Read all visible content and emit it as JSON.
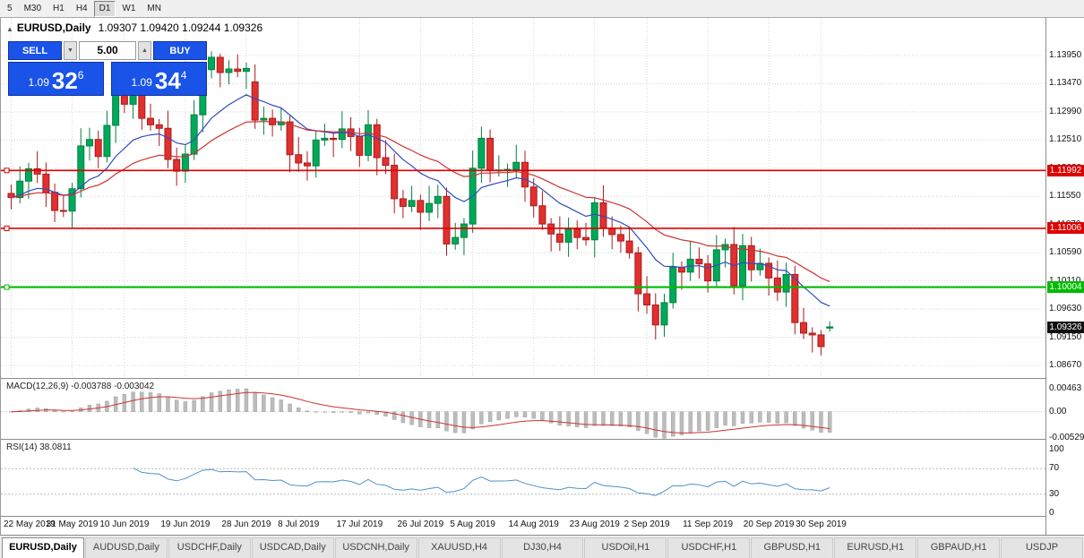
{
  "toolbar": {
    "timeframes": [
      "5",
      "M30",
      "H1",
      "H4",
      "D1",
      "W1",
      "MN"
    ],
    "active_timeframe": "D1"
  },
  "chart": {
    "collapse_icon": "▲",
    "symbol": "EURUSD,Daily",
    "ohlc": "1.09307 1.09420 1.09244 1.09326"
  },
  "trade_panel": {
    "sell_label": "SELL",
    "buy_label": "BUY",
    "volume": "5.00",
    "volume_down_icon": "▼",
    "volume_up_icon": "▲",
    "sell_price": {
      "head": "1.09",
      "main": "32",
      "sup": "6"
    },
    "buy_price": {
      "head": "1.09",
      "main": "34",
      "sup": "4"
    }
  },
  "chart_data": {
    "type": "candlestick",
    "symbol": "EURUSD",
    "timeframe": "Daily",
    "open": [
      1.116,
      1.1153,
      1.1181,
      1.1202,
      1.1193,
      1.1162,
      1.1131,
      1.113,
      1.1168,
      1.1241,
      1.1252,
      1.1223,
      1.1276,
      1.1334,
      1.1312,
      1.1328,
      1.1288,
      1.1277,
      1.1271,
      1.1218,
      1.1198,
      1.1227,
      1.1294,
      1.1371,
      1.1392,
      1.1366,
      1.1372,
      1.1368,
      1.135,
      1.1285,
      1.1288,
      1.1277,
      1.1282,
      1.1226,
      1.1212,
      1.1207,
      1.1251,
      1.1254,
      1.1252,
      1.127,
      1.1257,
      1.1225,
      1.1277,
      1.1221,
      1.1208,
      1.1151,
      1.1138,
      1.1148,
      1.1128,
      1.1143,
      1.1155,
      1.1074,
      1.1085,
      1.1108,
      1.1203,
      1.1254,
      1.1199,
      1.12,
      1.1201,
      1.1213,
      1.1171,
      1.1139,
      1.1108,
      1.1091,
      1.1077,
      1.1099,
      1.1085,
      1.1081,
      1.1144,
      1.1101,
      1.109,
      1.1079,
      1.1059,
      1.0989,
      1.097,
      1.0936,
      1.0974,
      1.1034,
      1.1026,
      1.1048,
      1.104,
      1.1011,
      1.1064,
      1.1073,
      1.1003,
      1.1071,
      1.103,
      1.1041,
      1.1016,
      1.0992,
      1.1022,
      1.094,
      1.0922,
      1.0919,
      1.09307
    ],
    "high": [
      1.1175,
      1.1206,
      1.1212,
      1.1232,
      1.1213,
      1.1177,
      1.1156,
      1.1178,
      1.1271,
      1.1272,
      1.1267,
      1.1301,
      1.1344,
      1.1364,
      1.1348,
      1.1343,
      1.1313,
      1.1287,
      1.1301,
      1.1238,
      1.1242,
      1.1319,
      1.1381,
      1.1402,
      1.1398,
      1.1387,
      1.1397,
      1.1383,
      1.138,
      1.1308,
      1.1303,
      1.1307,
      1.1292,
      1.1256,
      1.1232,
      1.1266,
      1.1279,
      1.1264,
      1.13,
      1.129,
      1.1272,
      1.1302,
      1.1287,
      1.1251,
      1.1228,
      1.1166,
      1.1173,
      1.1158,
      1.1173,
      1.1175,
      1.117,
      1.111,
      1.1118,
      1.1233,
      1.1274,
      1.1269,
      1.1225,
      1.1211,
      1.1243,
      1.1233,
      1.1186,
      1.1164,
      1.1118,
      1.1121,
      1.1119,
      1.1114,
      1.111,
      1.1154,
      1.1174,
      1.1121,
      1.1105,
      1.1104,
      1.1069,
      1.1019,
      1.099,
      1.0989,
      1.1059,
      1.1044,
      1.1078,
      1.1068,
      1.1055,
      1.1089,
      1.1083,
      1.1103,
      1.1091,
      1.1086,
      1.1066,
      1.1051,
      1.1046,
      1.1042,
      1.1037,
      1.0965,
      1.0932,
      1.0927,
      1.0942
    ],
    "low": [
      1.1133,
      1.1143,
      1.1151,
      1.1178,
      1.1137,
      1.1111,
      1.112,
      1.11,
      1.1153,
      1.1216,
      1.1203,
      1.1213,
      1.1246,
      1.1297,
      1.1287,
      1.1268,
      1.1267,
      1.1241,
      1.1203,
      1.1173,
      1.1178,
      1.1217,
      1.1264,
      1.1356,
      1.1341,
      1.1346,
      1.1358,
      1.1338,
      1.127,
      1.126,
      1.1257,
      1.1267,
      1.1196,
      1.1197,
      1.1182,
      1.1187,
      1.1241,
      1.1222,
      1.1237,
      1.1232,
      1.1205,
      1.1215,
      1.1191,
      1.1193,
      1.1126,
      1.1118,
      1.1128,
      1.1098,
      1.1113,
      1.1118,
      1.1054,
      1.1064,
      1.1055,
      1.1093,
      1.1178,
      1.1179,
      1.1189,
      1.1171,
      1.1186,
      1.1146,
      1.1119,
      1.1098,
      1.1061,
      1.1062,
      1.1052,
      1.1065,
      1.1071,
      1.1051,
      1.1086,
      1.1065,
      1.1059,
      1.1049,
      1.0959,
      1.0955,
      1.0911,
      1.0916,
      1.0964,
      1.0996,
      1.1011,
      1.1015,
      1.0991,
      1.1001,
      1.1034,
      1.0988,
      1.0978,
      1.101,
      1.102,
      1.0986,
      1.0977,
      1.0967,
      1.092,
      1.0912,
      1.0889,
      1.0884,
      1.09244
    ],
    "close": [
      1.1153,
      1.1181,
      1.1202,
      1.1193,
      1.1162,
      1.1131,
      1.113,
      1.1168,
      1.1241,
      1.1252,
      1.1223,
      1.1276,
      1.1334,
      1.1312,
      1.1328,
      1.1288,
      1.1277,
      1.1271,
      1.1218,
      1.1198,
      1.1227,
      1.1294,
      1.1371,
      1.1392,
      1.1366,
      1.1372,
      1.1368,
      1.1373,
      1.1285,
      1.1288,
      1.1277,
      1.1282,
      1.1226,
      1.1212,
      1.1207,
      1.1251,
      1.1254,
      1.1252,
      1.127,
      1.1257,
      1.1225,
      1.1277,
      1.1221,
      1.1208,
      1.1151,
      1.1138,
      1.1148,
      1.1128,
      1.1143,
      1.1155,
      1.1074,
      1.1085,
      1.1108,
      1.1203,
      1.1254,
      1.1199,
      1.12,
      1.1201,
      1.1213,
      1.1171,
      1.1139,
      1.1108,
      1.1091,
      1.1077,
      1.1099,
      1.1085,
      1.1081,
      1.1144,
      1.1101,
      1.109,
      1.1079,
      1.1059,
      1.0989,
      1.097,
      1.0936,
      1.0974,
      1.1034,
      1.1026,
      1.1048,
      1.104,
      1.1011,
      1.1064,
      1.1073,
      1.1003,
      1.1071,
      1.103,
      1.1041,
      1.1016,
      1.0992,
      1.1022,
      1.094,
      1.0922,
      1.0919,
      1.0899,
      1.09326
    ],
    "date_labels": [
      {
        "i": 0,
        "t": "22 May 2019"
      },
      {
        "i": 7,
        "t": "31 May 2019"
      },
      {
        "i": 13,
        "t": "10 Jun 2019"
      },
      {
        "i": 20,
        "t": "19 Jun 2019"
      },
      {
        "i": 27,
        "t": "28 Jun 2019"
      },
      {
        "i": 33,
        "t": "8 Jul 2019"
      },
      {
        "i": 40,
        "t": "17 Jul 2019"
      },
      {
        "i": 47,
        "t": "26 Jul 2019"
      },
      {
        "i": 53,
        "t": "5 Aug 2019"
      },
      {
        "i": 60,
        "t": "14 Aug 2019"
      },
      {
        "i": 67,
        "t": "23 Aug 2019"
      },
      {
        "i": 73,
        "t": "2 Sep 2019"
      },
      {
        "i": 80,
        "t": "11 Sep 2019"
      },
      {
        "i": 87,
        "t": "20 Sep 2019"
      },
      {
        "i": 93,
        "t": "30 Sep 2019"
      }
    ],
    "price_ticks": [
      1.1395,
      1.1347,
      1.1299,
      1.1251,
      1.1203,
      1.1155,
      1.1107,
      1.1059,
      1.1011,
      1.0963,
      1.0915,
      1.0867
    ],
    "hlines": [
      {
        "price": 1.11992,
        "color": "#dd0000",
        "width": 1.6
      },
      {
        "price": 1.11006,
        "color": "#dd0000",
        "width": 1.6
      },
      {
        "price": 1.10004,
        "color": "#00bb00",
        "width": 2.2
      }
    ],
    "last_price": 1.09326,
    "overlays": [
      {
        "name": "MA fast",
        "period": 12,
        "color": "#2f4cc0"
      },
      {
        "name": "MA slow",
        "period": 26,
        "color": "#cc3333"
      }
    ],
    "indicators": [
      {
        "name": "MACD",
        "label": "MACD(12,26,9) -0.003788 -0.003042",
        "params": [
          12,
          26,
          9
        ],
        "axis": [
          {
            "v": 0.00463,
            "t": "0.00463"
          },
          {
            "v": 0,
            "t": "0.00"
          },
          {
            "v": -0.00529,
            "t": "-0.00529"
          }
        ]
      },
      {
        "name": "RSI",
        "label": "RSI(14) 38.0811",
        "params": [
          14
        ],
        "axis": [
          {
            "v": 100,
            "t": "100"
          },
          {
            "v": 70,
            "t": "70"
          },
          {
            "v": 30,
            "t": "30"
          },
          {
            "v": 0,
            "t": "0"
          }
        ],
        "levels": [
          70,
          30
        ]
      }
    ]
  },
  "colors": {
    "up": "#00a85a",
    "up_line": "#00813f",
    "down": "#e03030",
    "down_line": "#aa1a1a",
    "grid": "#d8d8d8",
    "macd_hist": "#bcbcbc",
    "macd_signal": "#cc3333",
    "rsi_line": "#4f8fd0",
    "accent_blue": "#1a53e8",
    "badge_black": "#111111"
  },
  "tabs": [
    "EURUSD,Daily",
    "AUDUSD,Daily",
    "USDCHF,Daily",
    "USDCAD,Daily",
    "USDCNH,Daily",
    "XAUUSD,H4",
    "DJ30,H4",
    "USDOil,H1",
    "USDCHF,H1",
    "GBPUSD,H1",
    "EURUSD,H1",
    "GBPAUD,H1",
    "USDJP"
  ],
  "active_tab": "EURUSD,Daily"
}
